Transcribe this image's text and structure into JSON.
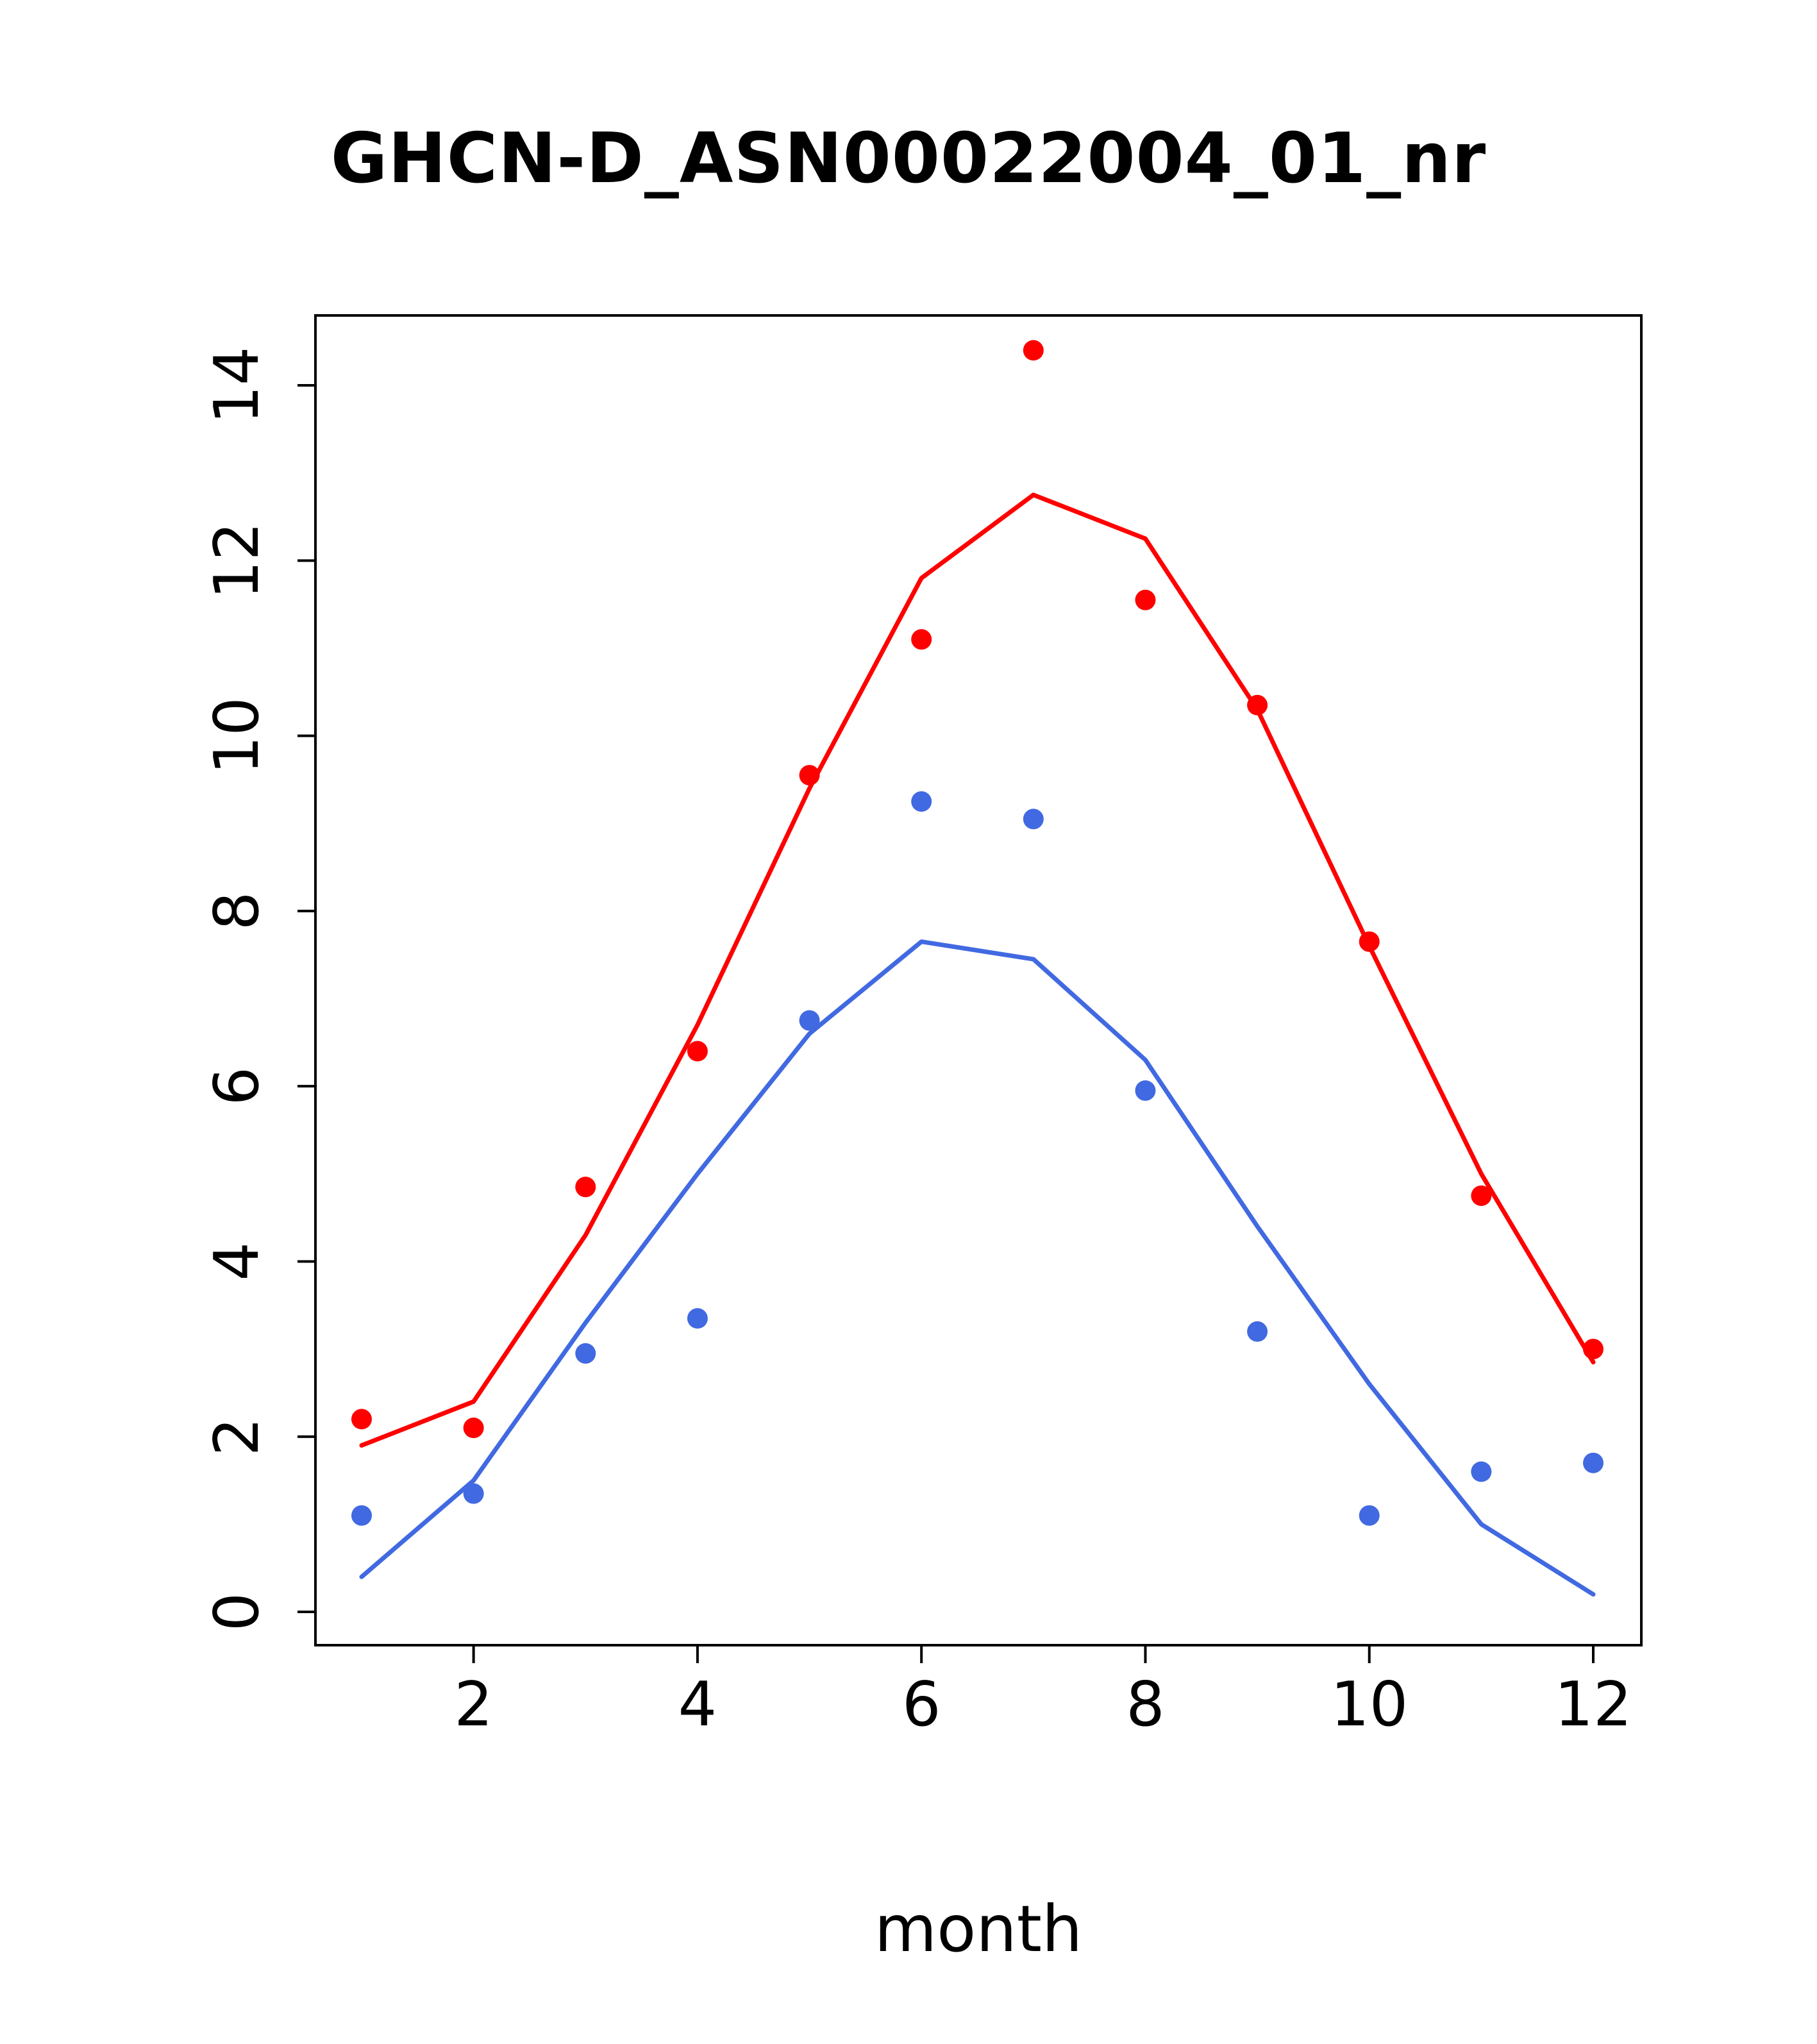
{
  "chart_data": {
    "type": "line",
    "title": "GHCN-D_ASN00022004_01_nr",
    "xlabel": "month",
    "ylabel": "",
    "x": [
      1,
      2,
      3,
      4,
      5,
      6,
      7,
      8,
      9,
      10,
      11,
      12
    ],
    "xticks": [
      2,
      4,
      6,
      8,
      10,
      12
    ],
    "yticks": [
      0,
      2,
      4,
      6,
      8,
      10,
      12,
      14
    ],
    "xlim": [
      0.56,
      12.44
    ],
    "ylim": [
      -0.4,
      14.8
    ],
    "grid": false,
    "legend": "none",
    "series": [
      {
        "name": "red-points",
        "kind": "scatter",
        "color": "#ff0000",
        "values": [
          2.2,
          2.1,
          4.85,
          6.4,
          9.55,
          11.1,
          14.4,
          11.55,
          10.35,
          7.65,
          4.75,
          3.0
        ]
      },
      {
        "name": "red-line",
        "kind": "line",
        "color": "#ff0000",
        "values": [
          1.9,
          2.4,
          4.3,
          6.7,
          9.4,
          11.8,
          12.75,
          12.25,
          10.3,
          7.6,
          5.0,
          2.85
        ]
      },
      {
        "name": "blue-points",
        "kind": "scatter",
        "color": "#4169e1",
        "values": [
          1.1,
          1.35,
          2.95,
          3.35,
          6.75,
          9.25,
          9.05,
          5.95,
          3.2,
          1.1,
          1.6,
          1.7
        ]
      },
      {
        "name": "blue-line",
        "kind": "line",
        "color": "#4169e1",
        "values": [
          0.4,
          1.5,
          3.3,
          5.0,
          6.6,
          7.65,
          7.45,
          6.3,
          4.4,
          2.6,
          1.0,
          0.2
        ]
      }
    ],
    "axis_color": "#000000"
  }
}
